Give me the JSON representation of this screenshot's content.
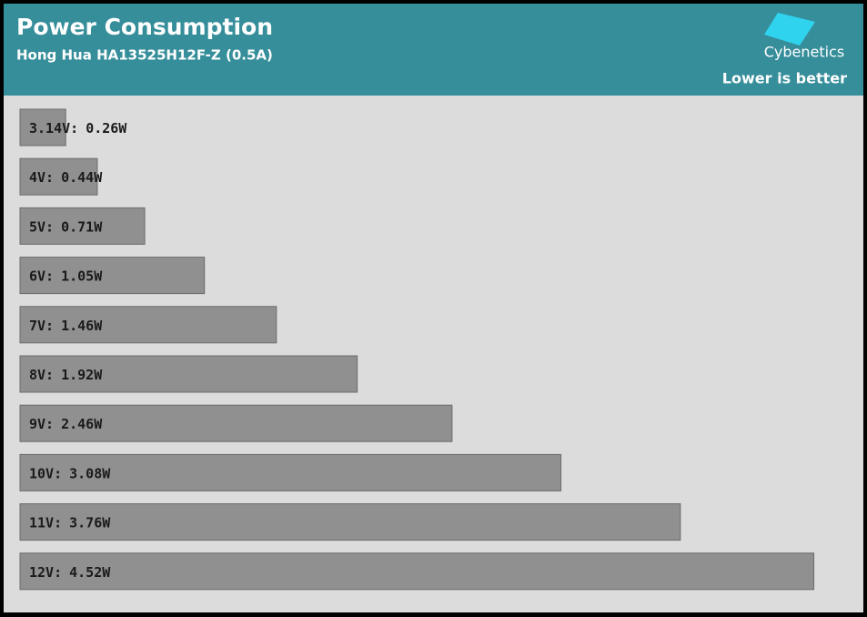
{
  "chart_data": {
    "type": "bar",
    "orientation": "horizontal",
    "title": "Power Consumption",
    "subtitle": "Hong Hua HA13525H12F-Z (0.5A)",
    "brand": "Cybenetics",
    "note": "Lower is better",
    "categories": [
      "3.14V:",
      "4V:",
      "5V:",
      "6V:",
      "7V:",
      "8V:",
      "9V:",
      "10V:",
      "11V:",
      "12V:"
    ],
    "values": [
      0.26,
      0.44,
      0.71,
      1.05,
      1.46,
      1.92,
      2.46,
      3.08,
      3.76,
      4.52
    ],
    "value_labels": [
      "0.26W",
      "0.44W",
      "0.71W",
      "1.05W",
      "1.46W",
      "1.92W",
      "2.46W",
      "3.08W",
      "3.76W",
      "4.52W"
    ],
    "color": "#909090",
    "xlim": [
      0,
      4.6
    ]
  }
}
